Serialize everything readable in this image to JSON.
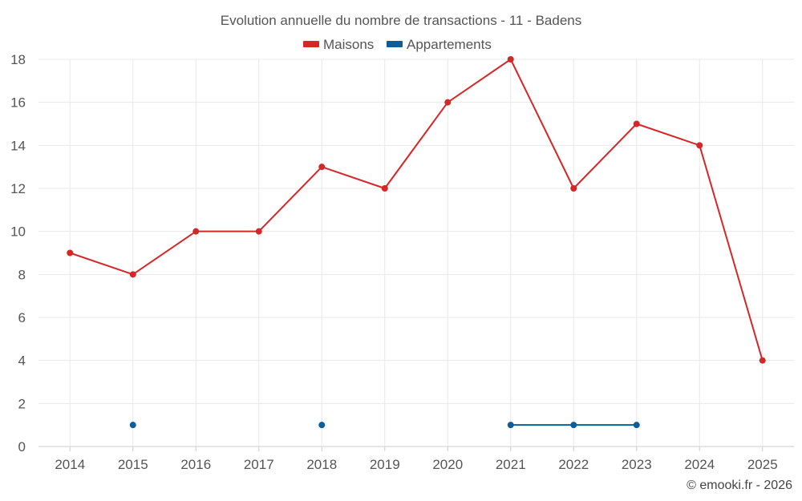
{
  "chart_data": {
    "type": "line",
    "title": "Evolution annuelle du nombre de transactions - 11 - Badens",
    "categories": [
      "2014",
      "2015",
      "2016",
      "2017",
      "2018",
      "2019",
      "2020",
      "2021",
      "2022",
      "2023",
      "2024",
      "2025"
    ],
    "ylim": [
      0,
      18
    ],
    "yticks": [
      0,
      2,
      4,
      6,
      8,
      10,
      12,
      14,
      16,
      18
    ],
    "grid": true,
    "legend_position": "top-center",
    "series": [
      {
        "name": "Maisons",
        "color": "#d62728",
        "values": [
          9,
          8,
          10,
          10,
          13,
          12,
          16,
          18,
          12,
          15,
          14,
          4
        ]
      },
      {
        "name": "Appartements",
        "color": "#0b5e99",
        "values": [
          null,
          1,
          null,
          null,
          1,
          null,
          null,
          1,
          1,
          1,
          null,
          null
        ]
      }
    ]
  },
  "credit": "© emooki.fr - 2026"
}
